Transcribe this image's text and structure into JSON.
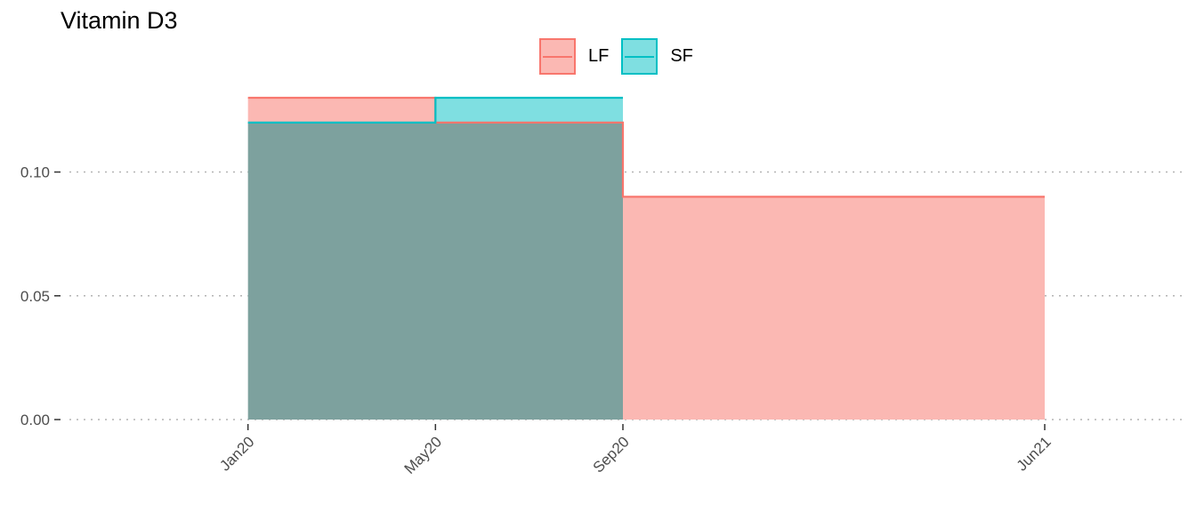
{
  "chart_data": {
    "type": "area",
    "title": "Vitamin D3",
    "xlabel": "",
    "ylabel": "",
    "step": true,
    "grid": {
      "y_major": true,
      "style": "dotted"
    },
    "legend": {
      "placement": "top"
    },
    "x_range_months": [
      "2019-09",
      "2021-09"
    ],
    "ylim": [
      0,
      0.13
    ],
    "y_ticks": [
      0.0,
      0.05,
      0.1
    ],
    "y_tick_labels": [
      "0.00",
      "0.05",
      "0.10"
    ],
    "x_ticks": [
      "2020-01",
      "2020-05",
      "2020-09",
      "2021-06"
    ],
    "x_tick_labels": [
      "Jan20",
      "May20",
      "Sep20",
      "Jun21"
    ],
    "series": [
      {
        "name": "LF",
        "color": "#F8766D",
        "fill": "#FBB8B3",
        "points": [
          {
            "x": "2020-01",
            "y": 0.13
          },
          {
            "x": "2020-05",
            "y": 0.12
          },
          {
            "x": "2020-09",
            "y": 0.09
          },
          {
            "x": "2021-06",
            "y": 0.09
          }
        ]
      },
      {
        "name": "SF",
        "color": "#00BFC4",
        "fill": "#7FDFE1",
        "points": [
          {
            "x": "2020-01",
            "y": 0.12
          },
          {
            "x": "2020-05",
            "y": 0.13
          },
          {
            "x": "2020-09",
            "y": 0.13
          }
        ]
      }
    ],
    "overlap_fill": "#7FBBBA"
  }
}
